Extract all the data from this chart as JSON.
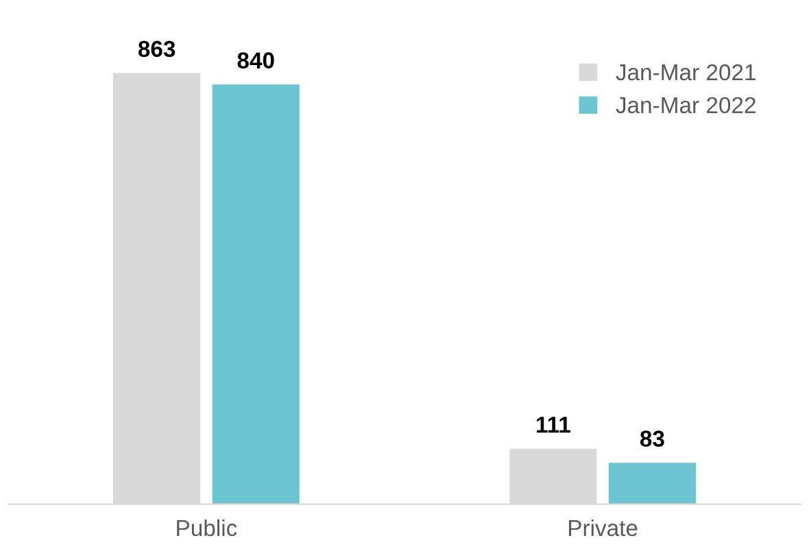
{
  "chart_data": {
    "type": "bar",
    "categories": [
      "Public",
      "Private"
    ],
    "series": [
      {
        "name": "Jan-Mar 2021",
        "color": "#d9d9d9",
        "values": [
          863,
          111
        ]
      },
      {
        "name": "Jan-Mar 2022",
        "color": "#6cc5d1",
        "values": [
          840,
          83
        ]
      }
    ],
    "data_labels": true,
    "legend": "top right",
    "grid": false
  }
}
